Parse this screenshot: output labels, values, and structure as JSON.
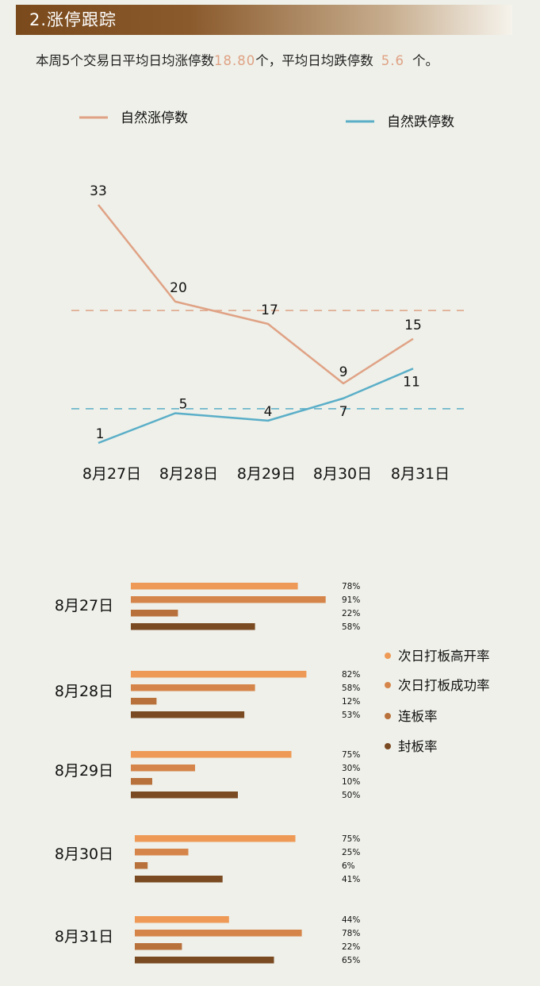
{
  "header": {
    "title": "2.涨停跟踪"
  },
  "summary": {
    "prefix": "本周5个交易日平均日均涨停数",
    "avg_limit_up": "18.80",
    "middle": "个，平均日均跌停数",
    "avg_limit_down": "5.6",
    "suffix": "个。"
  },
  "colors": {
    "header_bg": "#7a4a1c",
    "limit_up_line": "#e0a285",
    "limit_down_line": "#5aaec8",
    "bar_1": "#ee9a56",
    "bar_2": "#d6854a",
    "bar_3": "#b9713b",
    "bar_4": "#7a4a22"
  },
  "chart_data": [
    {
      "type": "line",
      "categories": [
        "8月27日",
        "8月28日",
        "8月29日",
        "8月30日",
        "8月31日"
      ],
      "series": [
        {
          "name": "自然涨停数",
          "values": [
            33,
            20,
            17,
            9,
            15
          ],
          "average": 18.8,
          "color": "#e0a285"
        },
        {
          "name": "自然跌停数",
          "values": [
            1,
            5,
            4,
            7,
            11
          ],
          "average": 5.6,
          "color": "#5aaec8"
        }
      ],
      "legend_position": "top",
      "grid": false
    },
    {
      "type": "bar",
      "orientation": "horizontal",
      "categories": [
        "8月27日",
        "8月28日",
        "8月29日",
        "8月30日",
        "8月31日"
      ],
      "series": [
        {
          "name": "次日打板高开率",
          "values": [
            78,
            82,
            75,
            75,
            44
          ],
          "labels": [
            "78%",
            "82%",
            "75%",
            "75%",
            "44%"
          ],
          "color": "#ee9a56"
        },
        {
          "name": "次日打板成功率",
          "values": [
            91,
            58,
            30,
            25,
            78
          ],
          "labels": [
            "91%",
            "58%",
            "30%",
            "25%",
            "78%"
          ],
          "color": "#d6854a"
        },
        {
          "name": "连板率",
          "values": [
            22,
            12,
            10,
            6,
            22
          ],
          "labels": [
            "22%",
            "12%",
            "10%",
            "6%",
            "22%"
          ],
          "color": "#b9713b"
        },
        {
          "name": "封板率",
          "values": [
            58,
            53,
            50,
            41,
            65
          ],
          "labels": [
            "58%",
            "53%",
            "50%",
            "41%",
            "65%"
          ],
          "color": "#7a4a22"
        }
      ],
      "xlim": [
        0,
        100
      ],
      "legend_position": "right",
      "grid": false
    }
  ]
}
